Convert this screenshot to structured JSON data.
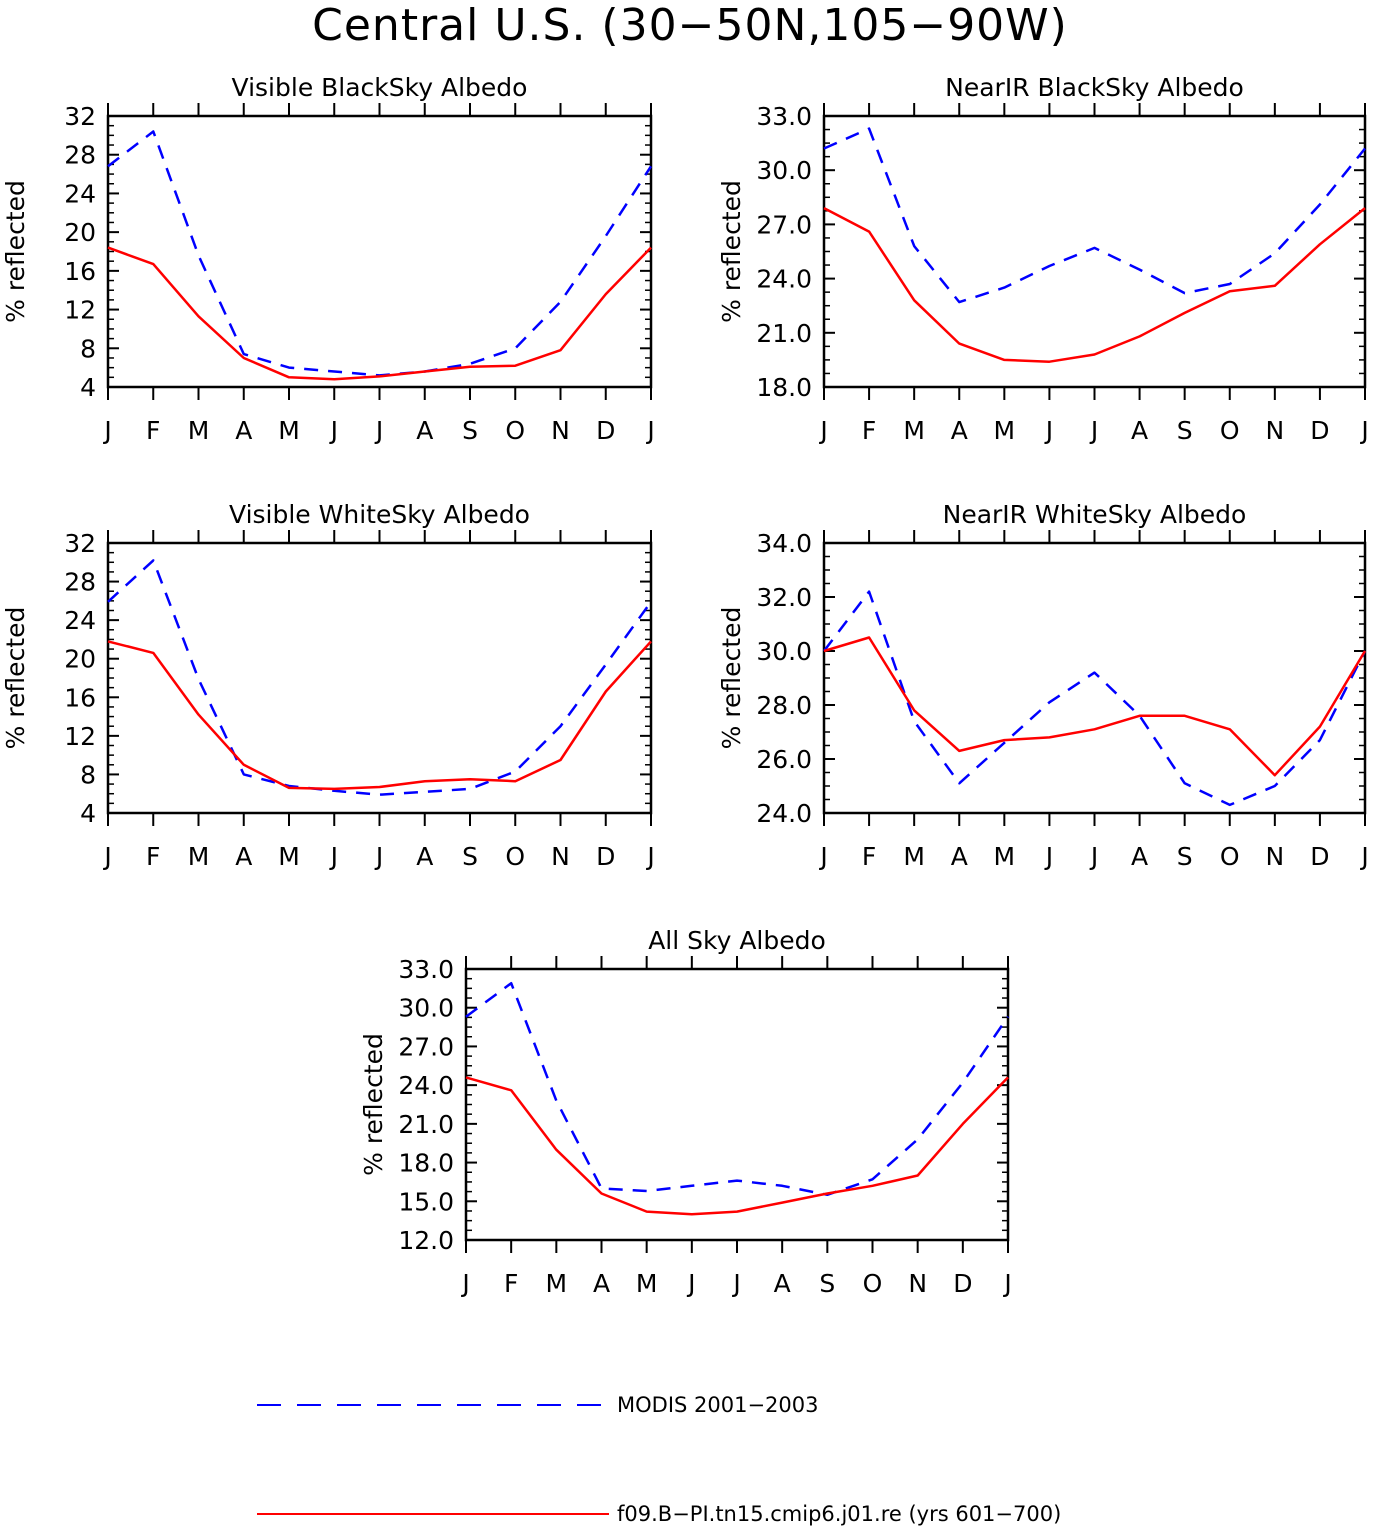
{
  "figure": {
    "title": "Central U.S. (30−50N,105−90W)"
  },
  "colors": {
    "modis": "#0000ff",
    "model": "#ff0000",
    "axis": "#000000"
  },
  "legend": [
    {
      "key": "modis",
      "label": "MODIS 2001−2003",
      "style": "dashed"
    },
    {
      "key": "model",
      "label": "f09.B−PI.tn15.cmip6.j01.re (yrs 601−700)",
      "style": "solid"
    }
  ],
  "chart_data": [
    {
      "type": "line",
      "title": "Visible BlackSky Albedo",
      "ylabel": "% reflected",
      "categories": [
        "J",
        "F",
        "M",
        "A",
        "M",
        "J",
        "J",
        "A",
        "S",
        "O",
        "N",
        "D",
        "J"
      ],
      "ylim": [
        4,
        32
      ],
      "yticks": [
        "4",
        "8",
        "12",
        "16",
        "20",
        "24",
        "28",
        "32"
      ],
      "series": [
        {
          "key": "modis",
          "values": [
            26.8,
            30.4,
            17.6,
            7.4,
            6.0,
            5.6,
            5.2,
            5.6,
            6.4,
            8.0,
            12.8,
            19.6,
            26.8
          ]
        },
        {
          "key": "model",
          "values": [
            18.4,
            16.7,
            11.3,
            7.0,
            5.0,
            4.8,
            5.1,
            5.6,
            6.1,
            6.2,
            7.8,
            13.6,
            18.4
          ]
        }
      ]
    },
    {
      "type": "line",
      "title": "NearIR BlackSky Albedo",
      "ylabel": "% reflected",
      "categories": [
        "J",
        "F",
        "M",
        "A",
        "M",
        "J",
        "J",
        "A",
        "S",
        "O",
        "N",
        "D",
        "J"
      ],
      "ylim": [
        18,
        33
      ],
      "yticks": [
        "18.0",
        "21.0",
        "24.0",
        "27.0",
        "30.0",
        "33.0"
      ],
      "series": [
        {
          "key": "modis",
          "values": [
            31.2,
            32.3,
            25.8,
            22.7,
            23.5,
            24.7,
            25.7,
            24.5,
            23.2,
            23.7,
            25.4,
            28.1,
            31.2
          ]
        },
        {
          "key": "model",
          "values": [
            27.9,
            26.6,
            22.8,
            20.4,
            19.5,
            19.4,
            19.8,
            20.8,
            22.1,
            23.3,
            23.6,
            25.9,
            27.9
          ]
        }
      ]
    },
    {
      "type": "line",
      "title": "Visible WhiteSky Albedo",
      "ylabel": "% reflected",
      "categories": [
        "J",
        "F",
        "M",
        "A",
        "M",
        "J",
        "J",
        "A",
        "S",
        "O",
        "N",
        "D",
        "J"
      ],
      "ylim": [
        4,
        32
      ],
      "yticks": [
        "4",
        "8",
        "12",
        "16",
        "20",
        "24",
        "28",
        "32"
      ],
      "series": [
        {
          "key": "modis",
          "values": [
            25.9,
            30.2,
            17.9,
            8.0,
            6.8,
            6.3,
            5.9,
            6.2,
            6.5,
            8.3,
            13.0,
            19.4,
            25.9
          ]
        },
        {
          "key": "model",
          "values": [
            21.8,
            20.6,
            14.2,
            9.0,
            6.6,
            6.5,
            6.7,
            7.3,
            7.5,
            7.3,
            9.5,
            16.6,
            21.8
          ]
        }
      ]
    },
    {
      "type": "line",
      "title": "NearIR WhiteSky Albedo",
      "ylabel": "% reflected",
      "categories": [
        "J",
        "F",
        "M",
        "A",
        "M",
        "J",
        "J",
        "A",
        "S",
        "O",
        "N",
        "D",
        "J"
      ],
      "ylim": [
        24,
        34
      ],
      "yticks": [
        "24.0",
        "26.0",
        "28.0",
        "30.0",
        "32.0",
        "34.0"
      ],
      "series": [
        {
          "key": "modis",
          "values": [
            30.0,
            32.2,
            27.4,
            25.1,
            26.6,
            28.1,
            29.2,
            27.6,
            25.1,
            24.3,
            25.0,
            26.7,
            30.0
          ]
        },
        {
          "key": "model",
          "values": [
            30.0,
            30.5,
            27.8,
            26.3,
            26.7,
            26.8,
            27.1,
            27.6,
            27.6,
            27.1,
            25.4,
            27.2,
            30.0
          ]
        }
      ]
    },
    {
      "type": "line",
      "title": "All Sky Albedo",
      "ylabel": "% reflected",
      "categories": [
        "J",
        "F",
        "M",
        "A",
        "M",
        "J",
        "J",
        "A",
        "S",
        "O",
        "N",
        "D",
        "J"
      ],
      "ylim": [
        12,
        33
      ],
      "yticks": [
        "12.0",
        "15.0",
        "18.0",
        "21.0",
        "24.0",
        "27.0",
        "30.0",
        "33.0"
      ],
      "series": [
        {
          "key": "modis",
          "values": [
            29.3,
            31.9,
            22.8,
            16.0,
            15.8,
            16.2,
            16.6,
            16.2,
            15.5,
            16.7,
            19.8,
            24.2,
            29.3
          ]
        },
        {
          "key": "model",
          "values": [
            24.6,
            23.6,
            19.0,
            15.6,
            14.2,
            14.0,
            14.2,
            14.9,
            15.6,
            16.2,
            17.0,
            21.0,
            24.6
          ]
        }
      ]
    }
  ]
}
